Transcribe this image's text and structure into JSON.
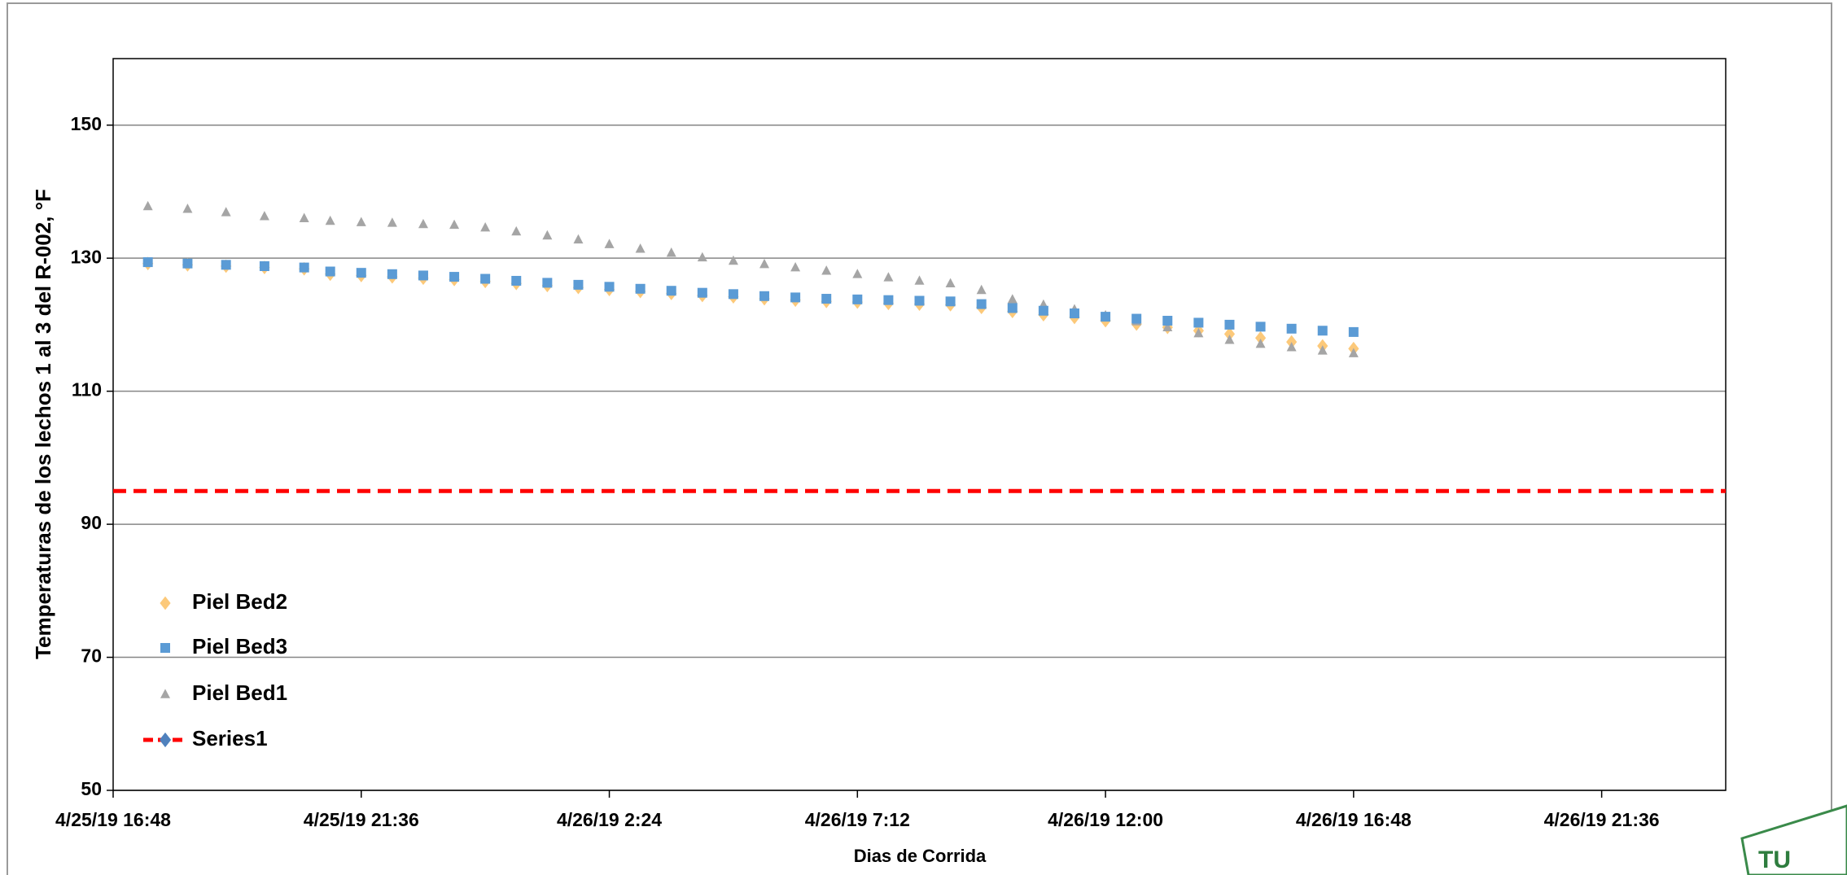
{
  "chart_data": {
    "type": "scatter",
    "ylabel": "Temperaturas de los lechos 1 al 3 del R-002, °F",
    "xlabel": "Dias de Corrida",
    "x": [
      43580.728,
      43580.76,
      43580.791,
      43580.822,
      43580.854,
      43580.875,
      43580.9,
      43580.925,
      43580.95,
      43580.975,
      43581.0,
      43581.025,
      43581.05,
      43581.075,
      43581.1,
      43581.125,
      43581.15,
      43581.175,
      43581.2,
      43581.225,
      43581.25,
      43581.275,
      43581.3,
      43581.325,
      43581.35,
      43581.375,
      43581.4,
      43581.425,
      43581.45,
      43581.475,
      43581.5,
      43581.525,
      43581.55,
      43581.575,
      43581.6,
      43581.625,
      43581.65,
      43581.675,
      43581.7
    ],
    "series": [
      {
        "name": "Piel Bed2",
        "color": "#fcc97a",
        "marker": "diamond",
        "values": [
          129.2,
          129.0,
          128.8,
          128.6,
          128.4,
          127.6,
          127.4,
          127.2,
          127.0,
          126.8,
          126.5,
          126.2,
          125.9,
          125.6,
          125.3,
          125.0,
          124.7,
          124.4,
          124.2,
          123.9,
          123.7,
          123.5,
          123.4,
          123.2,
          123.1,
          123.0,
          122.6,
          122.0,
          121.5,
          121.1,
          120.6,
          120.1,
          119.6,
          119.1,
          118.6,
          118.0,
          117.4,
          116.8,
          116.4
        ]
      },
      {
        "name": "Piel Bed3",
        "color": "#5b9bd5",
        "marker": "square",
        "values": [
          129.4,
          129.2,
          129.0,
          128.8,
          128.6,
          128.0,
          127.8,
          127.6,
          127.4,
          127.2,
          126.9,
          126.6,
          126.3,
          126.0,
          125.7,
          125.4,
          125.1,
          124.8,
          124.6,
          124.3,
          124.1,
          123.9,
          123.8,
          123.7,
          123.6,
          123.5,
          123.1,
          122.5,
          122.1,
          121.7,
          121.2,
          120.9,
          120.6,
          120.3,
          120.0,
          119.7,
          119.4,
          119.1,
          118.9
        ]
      },
      {
        "name": "Piel Bed1",
        "color": "#a5a5a5",
        "marker": "triangle",
        "values": [
          137.8,
          137.4,
          136.9,
          136.3,
          136.0,
          135.6,
          135.4,
          135.3,
          135.1,
          135.0,
          134.6,
          134.0,
          133.4,
          132.8,
          132.1,
          131.4,
          130.8,
          130.1,
          129.6,
          129.1,
          128.6,
          128.1,
          127.6,
          127.1,
          126.6,
          126.2,
          125.2,
          123.8,
          123.0,
          122.3,
          121.4,
          120.5,
          119.6,
          118.7,
          117.7,
          117.1,
          116.6,
          116.1,
          115.7
        ]
      },
      {
        "name": "Series1",
        "color": "#ff0000",
        "marker": "line",
        "line_style": "dashed",
        "marker_color": "#4f81bd",
        "x": [
          43580.7,
          43582.0
        ],
        "values": [
          95,
          95
        ]
      }
    ],
    "xlim": [
      43580.7,
      43582.0
    ],
    "xticks": [
      {
        "value": 43580.7,
        "label": "4/25/19 16:48"
      },
      {
        "value": 43580.9,
        "label": "4/25/19 21:36"
      },
      {
        "value": 43581.1,
        "label": "4/26/19 2:24"
      },
      {
        "value": 43581.3,
        "label": "4/26/19 7:12"
      },
      {
        "value": 43581.5,
        "label": "4/26/19 12:00"
      },
      {
        "value": 43581.7,
        "label": "4/26/19 16:48"
      },
      {
        "value": 43581.9,
        "label": "4/26/19 21:36"
      }
    ],
    "ylim": [
      50,
      160
    ],
    "yticks": [
      50,
      70,
      90,
      110,
      130,
      150
    ],
    "grid": true,
    "legend": "lower left"
  }
}
